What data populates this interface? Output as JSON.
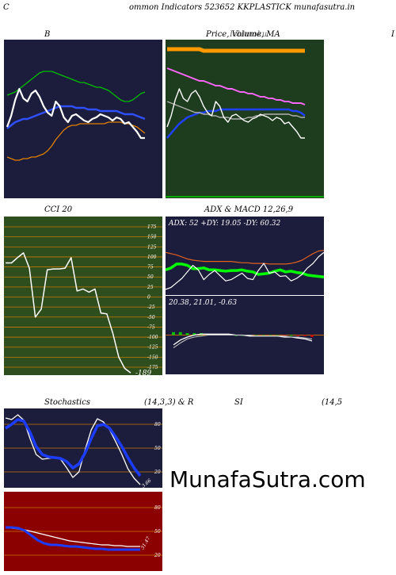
{
  "header": {
    "page_title": "ommon  Indicators 523652  KKPLASTICK munafasutra.in",
    "left_mark": "C"
  },
  "colors": {
    "navy_bg": "#1c1c3c",
    "green_bg": "#1e3d1e",
    "olive_bg": "#2e4e1e",
    "red_bg": "#8b0000",
    "price_line": "#ffffff",
    "ma_short": "#1c3cff",
    "ma_long": "#ff8c00",
    "bb_upper": "#00c000",
    "grid_orange": "#c87800",
    "adx_green": "#00ff00",
    "adx_orange": "#e06020"
  },
  "panels": {
    "bollinger": {
      "title": "B"
    },
    "price_ma": {
      "title": "Price,  Volume, MA",
      "title_overlay": "Ichimoku",
      "right_mark": "I"
    },
    "cci": {
      "title": "CCI 20",
      "value_label": "-189"
    },
    "adx_macd": {
      "title": "ADX  & MACD 12,26,9",
      "adx_text": "ADX: 52  +DY: 19.05 -DY: 60.32",
      "macd_text": "20.38,  21.01,  -0.63"
    },
    "stochastics": {
      "title": "Stochastics",
      "params": "(14,3,3) & R",
      "value_label": "3.66"
    },
    "rsi": {
      "title": "SI",
      "params": "(14,5",
      "value_label": "31.47"
    }
  },
  "watermark": "MunafaSutra.com",
  "chart_data": [
    {
      "type": "line",
      "name": "bollinger",
      "title": "B",
      "ylim": [
        0,
        100
      ],
      "series": [
        {
          "name": "upper",
          "color": "#00c000",
          "values": [
            65,
            66,
            67,
            69,
            71,
            73,
            75,
            77,
            79,
            80,
            80,
            80,
            79,
            78,
            77,
            76,
            75,
            74,
            73,
            73,
            72,
            71,
            70,
            70,
            69,
            68,
            66,
            64,
            62,
            61,
            61,
            62,
            64,
            66,
            67
          ]
        },
        {
          "name": "middle",
          "color": "#3050ff",
          "values": [
            44,
            46,
            48,
            49,
            50,
            50,
            51,
            52,
            53,
            54,
            55,
            56,
            57,
            58,
            58,
            58,
            58,
            57,
            57,
            57,
            56,
            56,
            56,
            55,
            55,
            55,
            55,
            55,
            54,
            53,
            53,
            53,
            52,
            51,
            50
          ]
        },
        {
          "name": "lower",
          "color": "#e08000",
          "values": [
            26,
            25,
            24,
            24,
            25,
            25,
            26,
            26,
            27,
            28,
            30,
            33,
            37,
            40,
            43,
            45,
            46,
            46,
            47,
            47,
            47,
            47,
            47,
            47,
            47,
            48,
            48,
            48,
            48,
            47,
            47,
            46,
            45,
            43,
            41
          ]
        },
        {
          "name": "price",
          "color": "#ffffff",
          "values": [
            45,
            52,
            62,
            69,
            63,
            61,
            66,
            68,
            64,
            58,
            54,
            52,
            61,
            58,
            51,
            48,
            52,
            53,
            51,
            49,
            48,
            50,
            51,
            53,
            52,
            51,
            49,
            51,
            50,
            47,
            48,
            45,
            42,
            38,
            38
          ]
        }
      ]
    },
    {
      "type": "line",
      "name": "price_ma",
      "title": "Price,  Volume, MA",
      "ylim": [
        0,
        100
      ],
      "series": [
        {
          "name": "top_band",
          "color": "#ff9900",
          "values": [
            94,
            94,
            94,
            94,
            94,
            94,
            94,
            94,
            94,
            93,
            93,
            93,
            93,
            93,
            93,
            93,
            93,
            93,
            93,
            93,
            93,
            93,
            93,
            93,
            93,
            93,
            93,
            93,
            93,
            93,
            93,
            93,
            93,
            93,
            93
          ]
        },
        {
          "name": "ma_magenta",
          "color": "#ff66ff",
          "values": [
            82,
            81,
            80,
            79,
            78,
            77,
            76,
            75,
            74,
            74,
            73,
            72,
            71,
            71,
            70,
            69,
            69,
            68,
            67,
            67,
            66,
            66,
            65,
            64,
            64,
            63,
            63,
            62,
            62,
            61,
            61,
            60,
            60,
            60,
            59
          ]
        },
        {
          "name": "ma_blue",
          "color": "#2040ff",
          "values": [
            38,
            41,
            44,
            47,
            49,
            51,
            52,
            53,
            54,
            54,
            55,
            55,
            55,
            56,
            56,
            56,
            56,
            56,
            56,
            56,
            56,
            56,
            56,
            56,
            56,
            56,
            56,
            56,
            56,
            56,
            56,
            55,
            55,
            54,
            52
          ]
        },
        {
          "name": "ma_grey",
          "color": "#b0b0b0",
          "values": [
            61,
            60,
            59,
            58,
            57,
            56,
            55,
            54,
            54,
            53,
            53,
            52,
            52,
            51,
            51,
            51,
            50,
            50,
            50,
            50,
            51,
            51,
            52,
            52,
            53,
            53,
            53,
            53,
            53,
            53,
            53,
            52,
            52,
            51,
            51
          ]
        },
        {
          "name": "price",
          "color": "#ffffff",
          "values": [
            45,
            52,
            62,
            69,
            63,
            61,
            66,
            68,
            64,
            58,
            54,
            52,
            61,
            58,
            51,
            48,
            52,
            53,
            51,
            49,
            48,
            50,
            51,
            53,
            52,
            51,
            49,
            51,
            50,
            47,
            48,
            45,
            42,
            38,
            38
          ]
        }
      ]
    },
    {
      "type": "line",
      "name": "cci",
      "title": "CCI 20",
      "ylim": [
        -175,
        175
      ],
      "ticks": [
        175,
        150,
        125,
        100,
        75,
        50,
        25,
        0,
        -25,
        -50,
        -75,
        -100,
        -125,
        -150,
        -175
      ],
      "series": [
        {
          "name": "cci",
          "color": "#ffffff",
          "values": [
            85,
            85,
            98,
            110,
            72,
            -50,
            -30,
            68,
            70,
            70,
            72,
            98,
            15,
            20,
            12,
            20,
            -40,
            -42,
            -90,
            -150,
            -178,
            -189
          ]
        }
      ]
    },
    {
      "type": "line",
      "name": "adx",
      "title": "ADX  & MACD 12,26,9",
      "ylim": [
        0,
        100
      ],
      "series": [
        {
          "name": "adx",
          "color": "#00ff00",
          "values": [
            35,
            38,
            44,
            44,
            42,
            37,
            37,
            38,
            35,
            35,
            34,
            33,
            34,
            34,
            35,
            33,
            32,
            28,
            29,
            30,
            33,
            35,
            32,
            33,
            31,
            30,
            27,
            26,
            25,
            24
          ]
        },
        {
          "name": "+DI",
          "color": "#e06020",
          "values": [
            62,
            60,
            58,
            55,
            52,
            50,
            49,
            48,
            48,
            48,
            48,
            48,
            48,
            47,
            46,
            46,
            45,
            45,
            45,
            44,
            44,
            44,
            44,
            45,
            47,
            50,
            55,
            60,
            64,
            65
          ]
        },
        {
          "name": "-DI",
          "color": "#ffffff",
          "values": [
            5,
            8,
            15,
            22,
            32,
            42,
            35,
            20,
            28,
            34,
            26,
            18,
            20,
            25,
            30,
            22,
            20,
            34,
            45,
            30,
            32,
            25,
            26,
            18,
            22,
            28,
            38,
            45,
            55,
            62
          ]
        }
      ]
    },
    {
      "type": "line",
      "name": "macd",
      "title": "",
      "ylim": [
        -40,
        40
      ],
      "series": [
        {
          "name": "macd",
          "color": "#ffffff",
          "values": [
            -10,
            -5,
            -2,
            0,
            1,
            1,
            1,
            1,
            1,
            0,
            0,
            -1,
            -1,
            -1,
            -1,
            -1,
            -2,
            -2,
            -3,
            -4,
            -6
          ]
        },
        {
          "name": "signal",
          "color": "#c0c0c0",
          "values": [
            -13,
            -8,
            -4,
            -2,
            -1,
            0,
            0,
            0,
            0,
            0,
            0,
            0,
            -1,
            -1,
            -1,
            -1,
            -1,
            -2,
            -2,
            -3,
            -4
          ]
        },
        {
          "name": "histogram",
          "color": "#00c000",
          "values": [
            3,
            3,
            2,
            2,
            2,
            1,
            1,
            1,
            1,
            0,
            0,
            -1,
            0,
            0,
            0,
            0,
            -1,
            0,
            -1,
            -1,
            -2
          ]
        }
      ]
    },
    {
      "type": "line",
      "name": "stochastics",
      "title": "Stochastics",
      "ylim": [
        0,
        100
      ],
      "ticks": [
        80,
        50,
        20
      ],
      "series": [
        {
          "name": "%K",
          "color": "#ffffff",
          "values": [
            88,
            86,
            92,
            85,
            62,
            42,
            36,
            37,
            38,
            36,
            25,
            13,
            20,
            48,
            73,
            87,
            83,
            73,
            58,
            42,
            24,
            12,
            4
          ]
        },
        {
          "name": "%D",
          "color": "#1c3cff",
          "values": [
            75,
            80,
            86,
            84,
            70,
            52,
            42,
            39,
            38,
            37,
            33,
            25,
            30,
            44,
            62,
            78,
            80,
            75,
            64,
            52,
            38,
            25,
            15
          ]
        }
      ]
    },
    {
      "type": "line",
      "name": "rsi",
      "title": "SI",
      "ylim": [
        0,
        100
      ],
      "ticks": [
        80,
        50,
        20
      ],
      "series": [
        {
          "name": "rsi",
          "color": "#ffffff",
          "values": [
            55,
            54,
            53,
            52,
            50,
            48,
            46,
            44,
            42,
            40,
            38,
            37,
            36,
            35,
            34,
            33,
            33,
            32,
            32,
            31,
            31,
            31
          ]
        },
        {
          "name": "rsi_ma",
          "color": "#1c3cff",
          "values": [
            55,
            55,
            54,
            51,
            45,
            39,
            35,
            33,
            33,
            32,
            31,
            31,
            30,
            29,
            28,
            28,
            27,
            27,
            27,
            27,
            27,
            27
          ]
        }
      ]
    }
  ]
}
